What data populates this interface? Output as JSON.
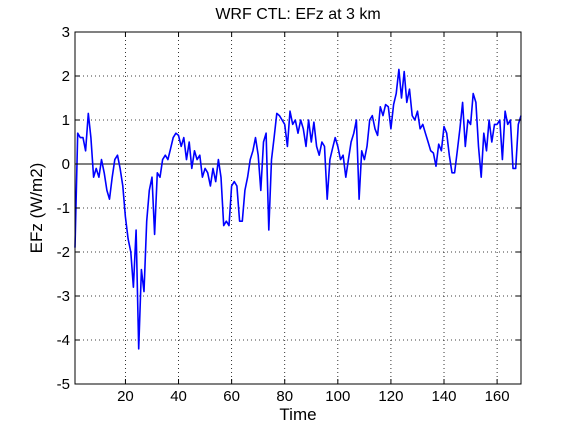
{
  "chart_data": {
    "type": "line",
    "title": "WRF CTL: EFz at 3 km",
    "xlabel": "Time",
    "ylabel": "EFz (W/m2)",
    "xlim": [
      1,
      169
    ],
    "ylim": [
      -5,
      3
    ],
    "xticks": [
      20,
      40,
      60,
      80,
      100,
      120,
      140,
      160
    ],
    "yticks": [
      -5,
      -4,
      -3,
      -2,
      -1,
      0,
      1,
      2,
      3
    ],
    "grid": true,
    "zero_line": true,
    "line_color": "#0000ff",
    "series": [
      {
        "x": [
          1,
          2,
          3,
          4,
          5,
          6,
          7,
          8,
          9,
          10,
          11,
          12,
          13,
          14,
          15,
          16,
          17,
          18,
          19,
          20,
          21,
          22,
          23,
          24,
          25,
          26,
          27,
          28,
          29,
          30,
          31,
          32,
          33,
          34,
          35,
          36,
          37,
          38,
          39,
          40,
          41,
          42,
          43,
          44,
          45,
          46,
          47,
          48,
          49,
          50,
          51,
          52,
          53,
          54,
          55,
          56,
          57,
          58,
          59,
          60,
          61,
          62,
          63,
          64,
          65,
          66,
          67,
          68,
          69,
          70,
          71,
          72,
          73,
          74,
          75,
          76,
          77,
          78,
          79,
          80,
          81,
          82,
          83,
          84,
          85,
          86,
          87,
          88,
          89,
          90,
          91,
          92,
          93,
          94,
          95,
          96,
          97,
          98,
          99,
          100,
          101,
          102,
          103,
          104,
          105,
          106,
          107,
          108,
          109,
          110,
          111,
          112,
          113,
          114,
          115,
          116,
          117,
          118,
          119,
          120,
          121,
          122,
          123,
          124,
          125,
          126,
          127,
          128,
          129,
          130,
          131,
          132,
          133,
          134,
          135,
          136,
          137,
          138,
          139,
          140,
          141,
          142,
          143,
          144,
          145,
          146,
          147,
          148,
          149,
          150,
          151,
          152,
          153,
          154,
          155,
          156,
          157,
          158,
          159,
          160,
          161,
          162,
          163,
          164,
          165,
          166,
          167,
          168,
          169
        ],
        "y": [
          -1.9,
          0.7,
          0.6,
          0.6,
          0.3,
          1.15,
          0.6,
          -0.3,
          -0.1,
          -0.3,
          0.1,
          -0.2,
          -0.6,
          -0.8,
          -0.3,
          0.1,
          0.2,
          -0.1,
          -0.5,
          -1.2,
          -1.7,
          -2.0,
          -2.8,
          -1.5,
          -4.2,
          -2.4,
          -2.9,
          -1.3,
          -0.6,
          -0.3,
          -1.6,
          -0.2,
          -0.3,
          0.1,
          0.2,
          0.1,
          0.35,
          0.6,
          0.7,
          0.65,
          0.4,
          0.6,
          0.1,
          0.5,
          -0.1,
          0.3,
          0.1,
          0.2,
          -0.3,
          -0.1,
          -0.2,
          -0.5,
          -0.1,
          -0.4,
          0.1,
          -0.3,
          -1.4,
          -1.3,
          -1.4,
          -0.5,
          -0.4,
          -0.5,
          -1.3,
          -1.3,
          -0.6,
          -0.3,
          0.1,
          0.3,
          0.6,
          0.2,
          -0.6,
          0.5,
          0.7,
          -1.5,
          0.1,
          0.6,
          1.15,
          1.1,
          1.0,
          0.9,
          0.4,
          1.2,
          0.9,
          1.0,
          0.7,
          1.0,
          0.8,
          0.4,
          1.0,
          0.5,
          0.95,
          0.4,
          0.2,
          0.5,
          0.4,
          -0.8,
          0.1,
          0.35,
          0.6,
          0.4,
          0.1,
          0.2,
          -0.3,
          0.1,
          0.5,
          0.7,
          1.0,
          -0.8,
          0.3,
          0.1,
          0.4,
          1.0,
          1.1,
          0.8,
          0.65,
          1.3,
          1.1,
          1.35,
          1.3,
          0.8,
          1.35,
          1.6,
          2.15,
          1.5,
          2.1,
          1.4,
          1.7,
          1.1,
          1.0,
          1.2,
          0.8,
          0.9,
          0.7,
          0.5,
          0.3,
          0.25,
          -0.05,
          0.45,
          0.3,
          0.85,
          0.7,
          0.2,
          -0.2,
          -0.2,
          0.3,
          0.8,
          1.4,
          0.4,
          1.0,
          0.9,
          1.6,
          1.4,
          0.4,
          -0.3,
          0.7,
          0.3,
          1.0,
          0.5,
          0.9,
          0.9,
          1.0,
          0.1,
          1.2,
          0.9,
          1.0,
          -0.1,
          -0.1,
          0.9,
          1.1
        ]
      }
    ]
  }
}
